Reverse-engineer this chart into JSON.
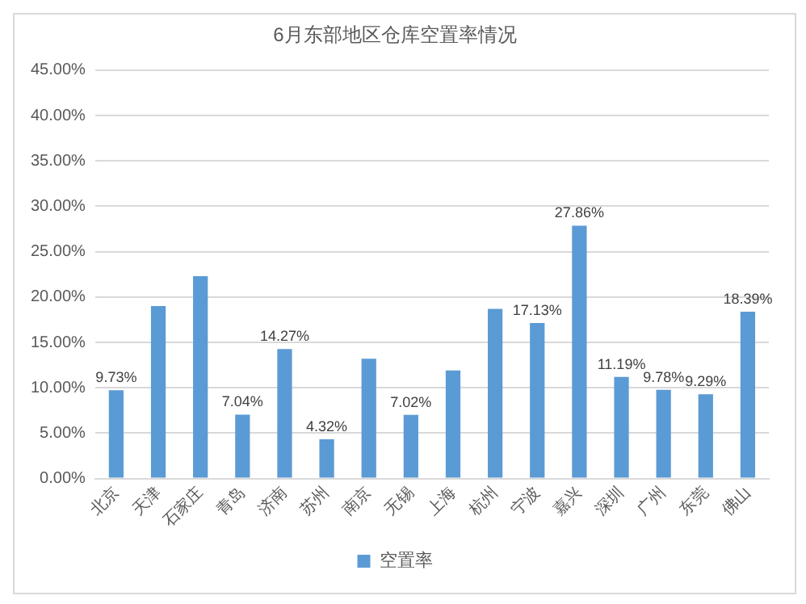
{
  "chart_data": {
    "type": "bar",
    "title": "6月东部地区仓库空置率情况",
    "categories": [
      "北京",
      "天津",
      "石家庄",
      "青岛",
      "济南",
      "苏州",
      "南京",
      "无锡",
      "上海",
      "杭州",
      "宁波",
      "嘉兴",
      "深圳",
      "广州",
      "东莞",
      "佛山"
    ],
    "series": [
      {
        "name": "空置率",
        "color": "#5b9bd5",
        "values": [
          9.73,
          19.0,
          22.3,
          7.04,
          14.27,
          4.32,
          13.2,
          7.02,
          11.9,
          18.7,
          17.13,
          27.86,
          11.19,
          9.78,
          9.29,
          18.39
        ],
        "value_labels": [
          "9.73%",
          null,
          null,
          "7.04%",
          "14.27%",
          "4.32%",
          null,
          "7.02%",
          null,
          null,
          "17.13%",
          "27.86%",
          "11.19%",
          "9.78%",
          "9.29%",
          "18.39%"
        ]
      }
    ],
    "ylim": [
      0,
      45
    ],
    "yticks": [
      {
        "value": 0,
        "label": "0.00%"
      },
      {
        "value": 5,
        "label": "5.00%"
      },
      {
        "value": 10,
        "label": "10.00%"
      },
      {
        "value": 15,
        "label": "15.00%"
      },
      {
        "value": 20,
        "label": "20.00%"
      },
      {
        "value": 25,
        "label": "25.00%"
      },
      {
        "value": 30,
        "label": "30.00%"
      },
      {
        "value": 35,
        "label": "35.00%"
      },
      {
        "value": 40,
        "label": "40.00%"
      },
      {
        "value": 45,
        "label": "45.00%"
      }
    ],
    "grid": "y",
    "legend": "bottom"
  }
}
